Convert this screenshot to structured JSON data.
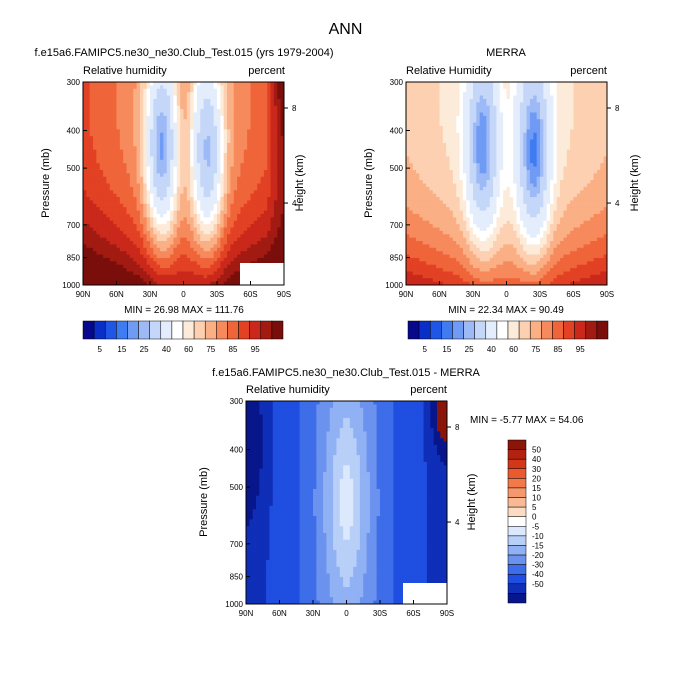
{
  "figure": {
    "title": "ANN"
  },
  "chart_data": [
    {
      "type": "heatmap",
      "title": "f.e15a6.FAMIPC5.ne30_ne30.Club_Test.015 (yrs 1979-2004)",
      "left_label": "Relative humidity",
      "right_label": "percent",
      "xlabel": "",
      "ylabel": "Pressure (mb)",
      "y2label": "Height (km)",
      "x_ticks": [
        "90N",
        "60N",
        "30N",
        "0",
        "30S",
        "60S",
        "90S"
      ],
      "y_ticks": [
        "300",
        "400",
        "500",
        "700",
        "850",
        "1000"
      ],
      "y_tick_values": [
        300,
        400,
        500,
        700,
        850,
        1000
      ],
      "y2_ticks": [
        "8",
        "4"
      ],
      "y2_tick_pressures": [
        350,
        615
      ],
      "ylim": [
        1000,
        300
      ],
      "xlim": [
        90,
        -90
      ],
      "stats": "MIN = 26.98  MAX = 111.76",
      "min": 26.98,
      "max": 111.76,
      "field": "model"
    },
    {
      "type": "heatmap",
      "title": "MERRA",
      "left_label": "Relative Humidity",
      "right_label": "percent",
      "xlabel": "",
      "ylabel": "Pressure (mb)",
      "y2label": "Height (km)",
      "x_ticks": [
        "90N",
        "60N",
        "30N",
        "0",
        "30S",
        "60S",
        "90S"
      ],
      "y_ticks": [
        "300",
        "400",
        "500",
        "700",
        "850",
        "1000"
      ],
      "y_tick_values": [
        300,
        400,
        500,
        700,
        850,
        1000
      ],
      "y2_ticks": [
        "8",
        "4"
      ],
      "y2_tick_pressures": [
        350,
        615
      ],
      "ylim": [
        1000,
        300
      ],
      "xlim": [
        90,
        -90
      ],
      "stats": "MIN = 22.34  MAX = 90.49",
      "min": 22.34,
      "max": 90.49,
      "field": "obs"
    },
    {
      "type": "heatmap",
      "title": "f.e15a6.FAMIPC5.ne30_ne30.Club_Test.015 - MERRA",
      "left_label": "Relative humidity",
      "right_label": "percent",
      "xlabel": "",
      "ylabel": "Pressure (mb)",
      "y2label": "Height (km)",
      "x_ticks": [
        "90N",
        "60N",
        "30N",
        "0",
        "30S",
        "60S",
        "90S"
      ],
      "y_ticks": [
        "300",
        "400",
        "500",
        "700",
        "850",
        "1000"
      ],
      "y_tick_values": [
        300,
        400,
        500,
        700,
        850,
        1000
      ],
      "y2_ticks": [
        "8",
        "4"
      ],
      "y2_tick_pressures": [
        350,
        615
      ],
      "ylim": [
        1000,
        300
      ],
      "xlim": [
        90,
        -90
      ],
      "stats": "MIN = -5.77  MAX = 54.06",
      "min": -5.77,
      "max": 54.06,
      "field": "diff"
    }
  ],
  "colorbars": {
    "field": {
      "labels": [
        "5",
        "15",
        "25",
        "40",
        "60",
        "75",
        "85",
        "95"
      ],
      "colors": [
        "#08088c",
        "#0a2fc8",
        "#1f56e6",
        "#3f7cf2",
        "#6f9bf5",
        "#9dbaf6",
        "#c5d7f8",
        "#e4edfb",
        "#ffffff",
        "#fdebd9",
        "#fcd0b0",
        "#faaf84",
        "#f68a5c",
        "#f0643a",
        "#e24124",
        "#c9281a",
        "#a21b12",
        "#7a0e0a"
      ]
    },
    "diff": {
      "labels": [
        "50",
        "40",
        "30",
        "20",
        "15",
        "10",
        "5",
        "0",
        "-5",
        "-10",
        "-15",
        "-20",
        "-30",
        "-40",
        "-50"
      ],
      "colors": [
        "#8b1509",
        "#b3220f",
        "#d3371a",
        "#ea5a2e",
        "#f3784a",
        "#f7986c",
        "#f9b994",
        "#fbdcc2",
        "#ffffff",
        "#dce8fb",
        "#b8cff7",
        "#90b1f3",
        "#6a92ee",
        "#3d6de8",
        "#1f4ee0",
        "#0f2fb8",
        "#08168c"
      ]
    }
  }
}
